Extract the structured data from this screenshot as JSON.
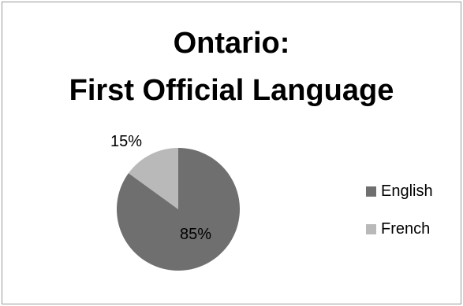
{
  "chart_data": {
    "type": "pie",
    "title": "Ontario:\nFirst Official Language",
    "title_lines": [
      "Ontario:",
      "First Official Language"
    ],
    "categories": [
      "English",
      "French"
    ],
    "values": [
      85,
      15
    ],
    "data_labels": [
      "85%",
      "15%"
    ],
    "colors": {
      "English": "#6f6f6f",
      "French": "#b9b9b9"
    },
    "legend_position": "right"
  }
}
